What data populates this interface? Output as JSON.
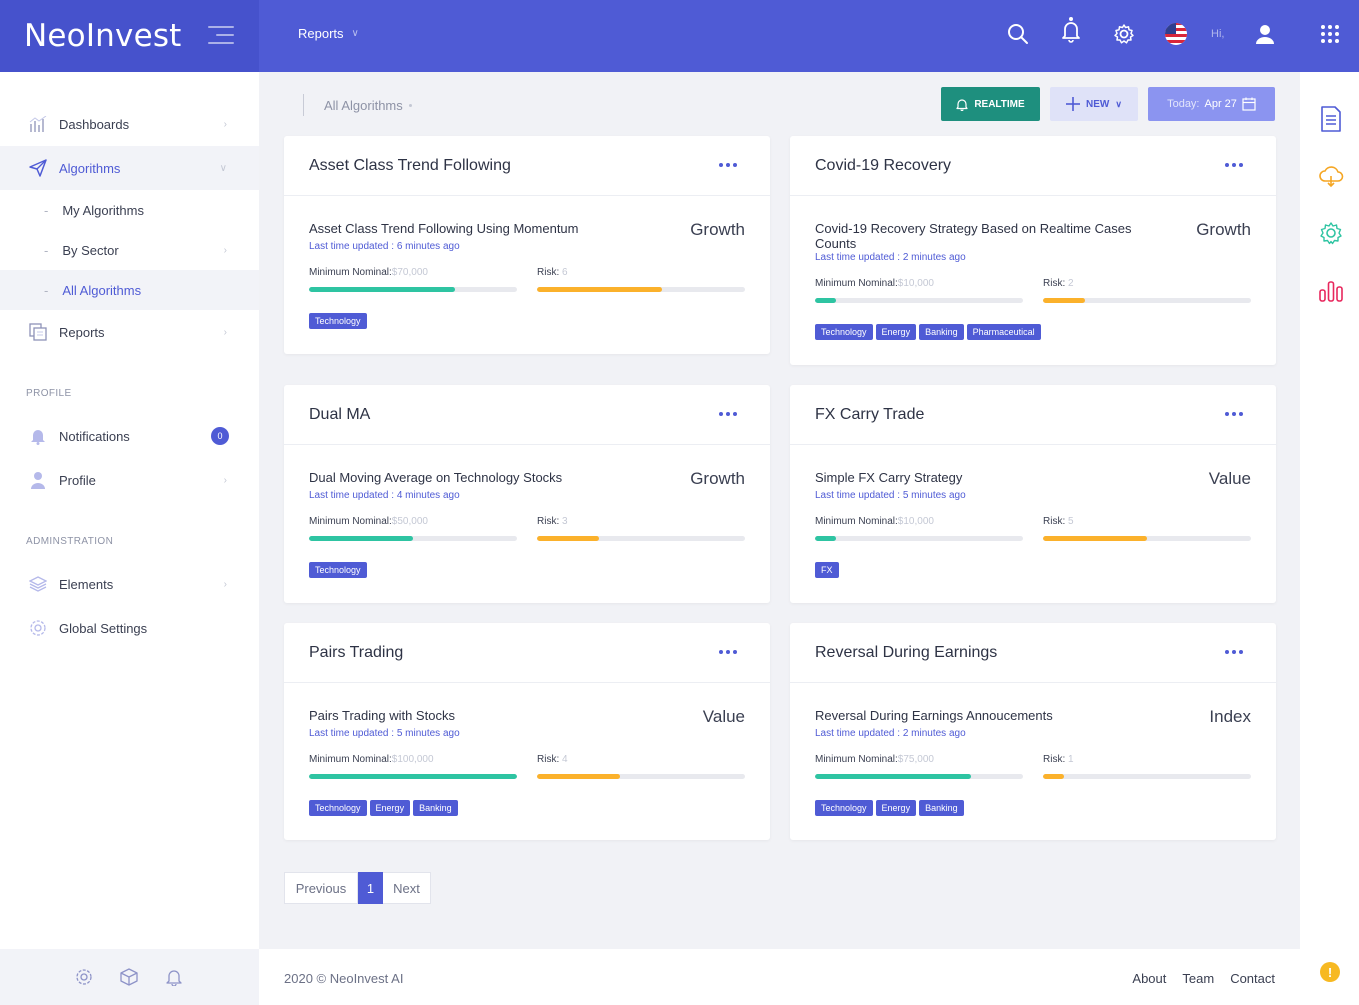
{
  "brand": {
    "name": "NeoInvest"
  },
  "topbar": {
    "menu_label": "Reports",
    "greeting": "Hi,"
  },
  "sidebar": {
    "dashboards": "Dashboards",
    "algorithms": "Algorithms",
    "sub": {
      "my_algorithms": "My Algorithms",
      "by_sector": "By Sector",
      "all_algorithms": "All Algorithms"
    },
    "reports": "Reports",
    "profile_section": "PROFILE",
    "notifications": "Notifications",
    "notifications_count": "0",
    "profile": "Profile",
    "admin_section": "ADMINSTRATION",
    "elements": "Elements",
    "global_settings": "Global Settings"
  },
  "header": {
    "breadcrumb": "All Algorithms",
    "realtime_button": "REALTIME",
    "new_button": "NEW",
    "today_label": "Today:",
    "today_date": "Apr 27"
  },
  "cards": [
    {
      "title": "Asset Class Trend Following",
      "algo": "Asset Class Trend Following Using Momentum",
      "updated": "Last time updated : 6 minutes ago",
      "type": "Growth",
      "min_label": "Minimum Nominal:",
      "min_value": "$70,000",
      "min_fill": 0.7,
      "risk_label": "Risk:",
      "risk_value": "6",
      "risk_fill": 0.6,
      "tags": [
        "Technology"
      ]
    },
    {
      "title": "Covid-19 Recovery",
      "algo": "Covid-19 Recovery Strategy Based on Realtime Cases Counts",
      "updated": "Last time updated : 2 minutes ago",
      "type": "Growth",
      "min_label": "Minimum Nominal:",
      "min_value": "$10,000",
      "min_fill": 0.1,
      "risk_label": "Risk:",
      "risk_value": "2",
      "risk_fill": 0.2,
      "tags": [
        "Technology",
        "Energy",
        "Banking",
        "Pharmaceutical"
      ]
    },
    {
      "title": "Dual MA",
      "algo": "Dual Moving Average on Technology Stocks",
      "updated": "Last time updated : 4 minutes ago",
      "type": "Growth",
      "min_label": "Minimum Nominal:",
      "min_value": "$50,000",
      "min_fill": 0.5,
      "risk_label": "Risk:",
      "risk_value": "3",
      "risk_fill": 0.3,
      "tags": [
        "Technology"
      ]
    },
    {
      "title": "FX Carry Trade",
      "algo": "Simple FX Carry Strategy",
      "updated": "Last time updated : 5 minutes ago",
      "type": "Value",
      "min_label": "Minimum Nominal:",
      "min_value": "$10,000",
      "min_fill": 0.1,
      "risk_label": "Risk:",
      "risk_value": "5",
      "risk_fill": 0.5,
      "tags": [
        "FX"
      ]
    },
    {
      "title": "Pairs Trading",
      "algo": "Pairs Trading with Stocks",
      "updated": "Last time updated : 5 minutes ago",
      "type": "Value",
      "min_label": "Minimum Nominal:",
      "min_value": "$100,000",
      "min_fill": 1.0,
      "risk_label": "Risk:",
      "risk_value": "4",
      "risk_fill": 0.4,
      "tags": [
        "Technology",
        "Energy",
        "Banking"
      ]
    },
    {
      "title": "Reversal During Earnings",
      "algo": "Reversal During Earnings Annoucements",
      "updated": "Last time updated : 2 minutes ago",
      "type": "Index",
      "min_label": "Minimum Nominal:",
      "min_value": "$75,000",
      "min_fill": 0.75,
      "risk_label": "Risk:",
      "risk_value": "1",
      "risk_fill": 0.1,
      "tags": [
        "Technology",
        "Energy",
        "Banking"
      ]
    }
  ],
  "pagination": {
    "previous": "Previous",
    "current": "1",
    "next": "Next"
  },
  "footer": {
    "copyright": "2020 © NeoInvest AI",
    "links": [
      "About",
      "Team",
      "Contact"
    ]
  },
  "colors": {
    "primary": "#4f5bd5",
    "realtime": "#1e8f7e",
    "progress_green": "#2ec4a2",
    "progress_orange": "#fbb12b",
    "warning": "#f7b922"
  },
  "icons": [
    "search-icon",
    "bell-icon",
    "gear-icon",
    "us-flag-icon",
    "user-icon",
    "apps-grid-icon",
    "document-icon",
    "cloud-icon",
    "settings-icon",
    "bar-chart-icon",
    "help-icon"
  ]
}
